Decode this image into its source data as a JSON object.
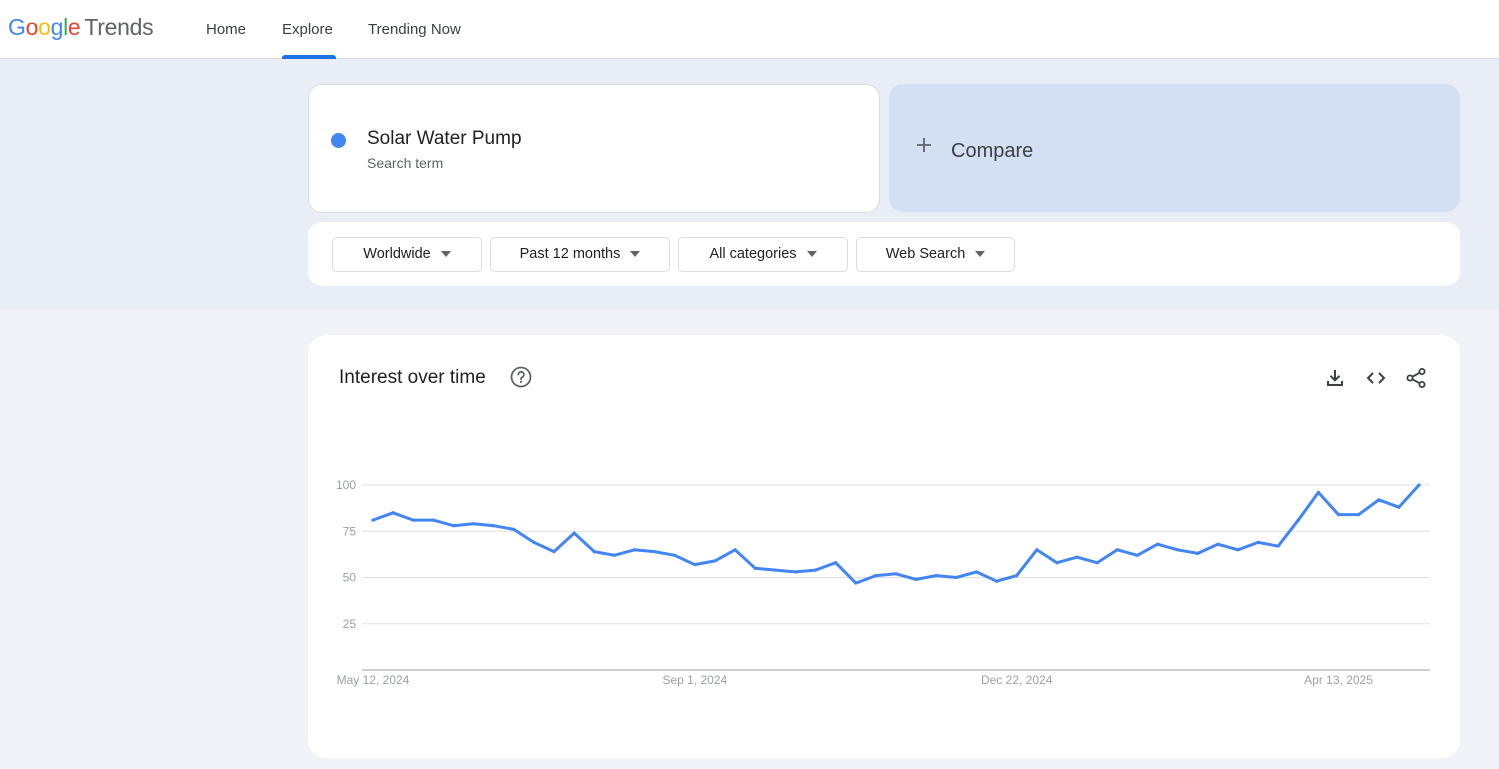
{
  "header": {
    "logo_google": "Google",
    "logo_trends": "Trends",
    "nav": [
      "Home",
      "Explore",
      "Trending Now"
    ],
    "active_nav": "Explore"
  },
  "search_term": {
    "name": "Solar Water Pump",
    "type": "Search term",
    "color": "#4285f4"
  },
  "compare": {
    "label": "Compare"
  },
  "filters": [
    "Worldwide",
    "Past 12 months",
    "All categories",
    "Web Search"
  ],
  "interest": {
    "title": "Interest over time",
    "icons": [
      "help-icon",
      "download-icon",
      "embed-icon",
      "share-icon"
    ]
  },
  "chart_data": {
    "type": "line",
    "ylim": [
      0,
      100
    ],
    "y_ticks": [
      25,
      50,
      75,
      100
    ],
    "x_tick_labels": [
      "May 12, 2024",
      "Sep 1, 2024",
      "Dec 22, 2024",
      "Apr 13, 2025"
    ],
    "x_tick_index": [
      0,
      16,
      32,
      48
    ],
    "grid": true,
    "series": [
      {
        "color": "#4285f4",
        "values": [
          81,
          85,
          81,
          81,
          78,
          79,
          78,
          76,
          69,
          64,
          74,
          64,
          62,
          65,
          64,
          62,
          57,
          59,
          65,
          55,
          54,
          53,
          54,
          58,
          47,
          51,
          52,
          49,
          51,
          50,
          53,
          48,
          51,
          65,
          58,
          61,
          58,
          65,
          62,
          68,
          65,
          63,
          68,
          65,
          69,
          67,
          81,
          96,
          84,
          84,
          92,
          88,
          100
        ]
      }
    ]
  }
}
